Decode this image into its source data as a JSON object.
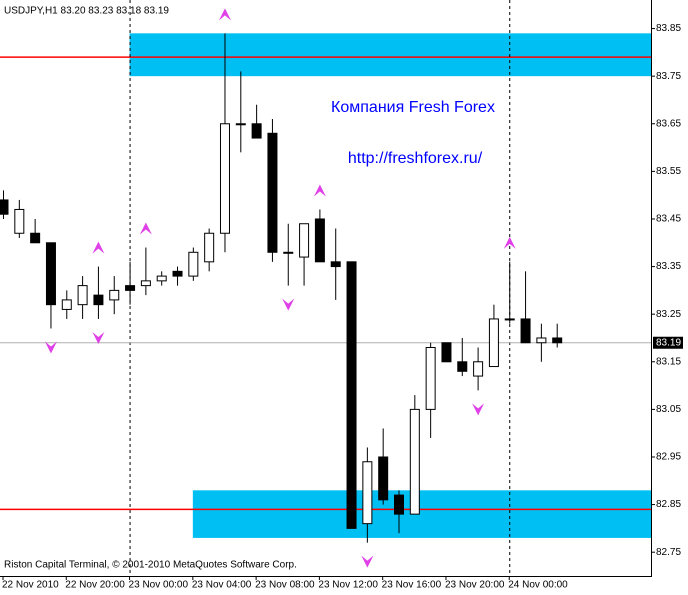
{
  "chart_data": {
    "type": "candlestick",
    "title": "USDJPY,H1  83.20 83.23 83.18 83.19",
    "annotations": [
      "Компания Fresh Forex",
      "http://freshforex.ru/"
    ],
    "footer": "Riston Capital Terminal, © 2001-2010 MetaQuotes Software Corp.",
    "categories": [
      "22 Nov 2010",
      null,
      null,
      null,
      "22 Nov 20:00",
      null,
      null,
      null,
      "23 Nov 00:00",
      null,
      null,
      null,
      "23 Nov 04:00",
      null,
      null,
      null,
      "23 Nov 08:00",
      null,
      null,
      null,
      "23 Nov 12:00",
      null,
      null,
      null,
      "23 Nov 16:00",
      null,
      null,
      null,
      "23 Nov 20:00",
      null,
      null,
      null,
      "24 Nov 00:00",
      null,
      null,
      null
    ],
    "open": [
      83.49,
      83.42,
      83.42,
      83.4,
      83.26,
      83.27,
      83.29,
      83.28,
      83.31,
      83.31,
      83.32,
      83.34,
      83.33,
      83.36,
      83.42,
      83.65,
      83.65,
      83.63,
      83.38,
      83.37,
      83.45,
      83.36,
      83.36,
      82.81,
      82.95,
      82.87,
      82.83,
      83.05,
      83.19,
      83.15,
      83.12,
      83.14,
      83.24,
      83.24,
      83.19,
      83.2
    ],
    "high": [
      83.51,
      83.49,
      83.45,
      83.4,
      83.3,
      83.33,
      83.35,
      83.33,
      83.36,
      83.39,
      83.34,
      83.35,
      83.39,
      83.43,
      83.84,
      83.76,
      83.69,
      83.66,
      83.44,
      83.44,
      83.47,
      83.43,
      83.36,
      82.97,
      83.01,
      82.88,
      83.08,
      83.19,
      83.19,
      83.2,
      83.18,
      83.27,
      83.36,
      83.34,
      83.23,
      83.23
    ],
    "low": [
      83.45,
      83.41,
      83.4,
      83.22,
      83.24,
      83.24,
      83.24,
      83.25,
      83.27,
      83.29,
      83.31,
      83.31,
      83.32,
      83.34,
      83.38,
      83.59,
      83.62,
      83.36,
      83.31,
      83.31,
      83.36,
      83.28,
      82.8,
      82.77,
      82.85,
      82.79,
      82.83,
      82.99,
      83.15,
      83.12,
      83.09,
      83.14,
      83.23,
      83.19,
      83.15,
      83.18
    ],
    "close": [
      83.46,
      83.47,
      83.4,
      83.27,
      83.28,
      83.31,
      83.27,
      83.3,
      83.3,
      83.32,
      83.33,
      83.33,
      83.38,
      83.42,
      83.65,
      83.65,
      83.62,
      83.38,
      83.38,
      83.44,
      83.36,
      83.35,
      82.8,
      82.94,
      82.86,
      82.83,
      83.05,
      83.18,
      83.15,
      83.13,
      83.15,
      83.24,
      83.24,
      83.19,
      83.2,
      83.19
    ],
    "fractals_up": [
      null,
      null,
      null,
      null,
      null,
      null,
      83.35,
      null,
      null,
      83.39,
      null,
      null,
      null,
      null,
      83.84,
      null,
      null,
      null,
      null,
      null,
      83.47,
      null,
      null,
      null,
      null,
      null,
      null,
      null,
      null,
      null,
      null,
      null,
      83.36,
      null,
      null,
      null
    ],
    "fractals_down": [
      null,
      null,
      null,
      83.22,
      null,
      null,
      83.24,
      null,
      null,
      null,
      null,
      null,
      null,
      null,
      null,
      null,
      null,
      null,
      83.31,
      null,
      null,
      null,
      null,
      82.77,
      null,
      null,
      null,
      null,
      null,
      null,
      83.09,
      null,
      null,
      null,
      null,
      null
    ],
    "zones": [
      {
        "from": 83.75,
        "to": 83.84,
        "start": 8
      },
      {
        "from": 82.78,
        "to": 82.88,
        "start": 12
      }
    ],
    "levels": [
      83.79,
      82.84
    ],
    "separators": [
      8,
      32
    ],
    "last_price": 83.19,
    "ylim": [
      82.7,
      83.91
    ],
    "yticks": [
      83.85,
      83.75,
      83.65,
      83.55,
      83.45,
      83.35,
      83.25,
      83.15,
      83.05,
      82.95,
      82.85,
      82.75
    ],
    "zone_color": "#00bff3",
    "level_color": "#ff0000",
    "fractal_color": "#e040e8",
    "bull_color": "#ffffff",
    "bear_color": "#000000"
  }
}
